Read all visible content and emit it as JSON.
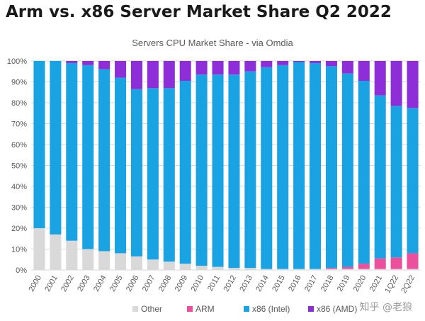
{
  "headline": "Arm vs. x86 Server Market Share Q2 2022",
  "watermark": "知乎 @老狼",
  "colors": {
    "other": "#d9d9d9",
    "arm": "#ec4f9c",
    "intel": "#1aa3e3",
    "amd": "#8e2ed9",
    "grid": "#d9d9d9",
    "text": "#595959"
  },
  "chart_data": {
    "type": "bar",
    "stacked": true,
    "title": "Servers CPU Market Share - via Omdia",
    "xlabel": "",
    "ylabel": "",
    "ylim": [
      0,
      100
    ],
    "yticks": [
      "0%",
      "10%",
      "20%",
      "30%",
      "40%",
      "50%",
      "60%",
      "70%",
      "80%",
      "90%",
      "100%"
    ],
    "categories": [
      "2000",
      "2001",
      "2002",
      "2003",
      "2004",
      "2005",
      "2006",
      "2007",
      "2008",
      "2009",
      "2010",
      "2011",
      "2012",
      "2013",
      "2014",
      "2015",
      "2016",
      "2017",
      "2018",
      "2019",
      "2020",
      "2021",
      "1Q22",
      "2Q22"
    ],
    "legend_position": "bottom",
    "series": [
      {
        "key": "other",
        "name": "Other",
        "values": [
          20,
          17,
          14,
          10,
          9,
          8,
          6.5,
          5,
          4,
          3,
          2,
          1.5,
          1,
          1,
          0.5,
          0.5,
          0.5,
          0.5,
          0.5,
          0.5,
          0.5,
          0.5,
          0.5,
          0.5
        ]
      },
      {
        "key": "arm",
        "name": "ARM",
        "values": [
          0,
          0,
          0,
          0,
          0,
          0,
          0,
          0,
          0,
          0,
          0,
          0,
          0,
          0,
          0,
          0,
          0,
          0,
          0.5,
          1,
          2.5,
          5,
          5.5,
          7.5
        ]
      },
      {
        "key": "intel",
        "name": "x86 (Intel)",
        "values": [
          80,
          83,
          85,
          88,
          87,
          84,
          80,
          82,
          83,
          87.5,
          91.5,
          92,
          92.5,
          94,
          96.5,
          97.5,
          99,
          98.5,
          96.5,
          92.5,
          87.5,
          78,
          72.5,
          69.5
        ]
      },
      {
        "key": "amd",
        "name": "x86 (AMD)",
        "values": [
          0,
          0,
          1,
          2,
          4,
          8,
          13.5,
          13,
          13,
          9.5,
          6.5,
          6.5,
          6.5,
          5,
          3,
          2,
          0.5,
          1,
          2.5,
          6,
          9.5,
          16.5,
          21.5,
          22.5
        ]
      }
    ]
  }
}
